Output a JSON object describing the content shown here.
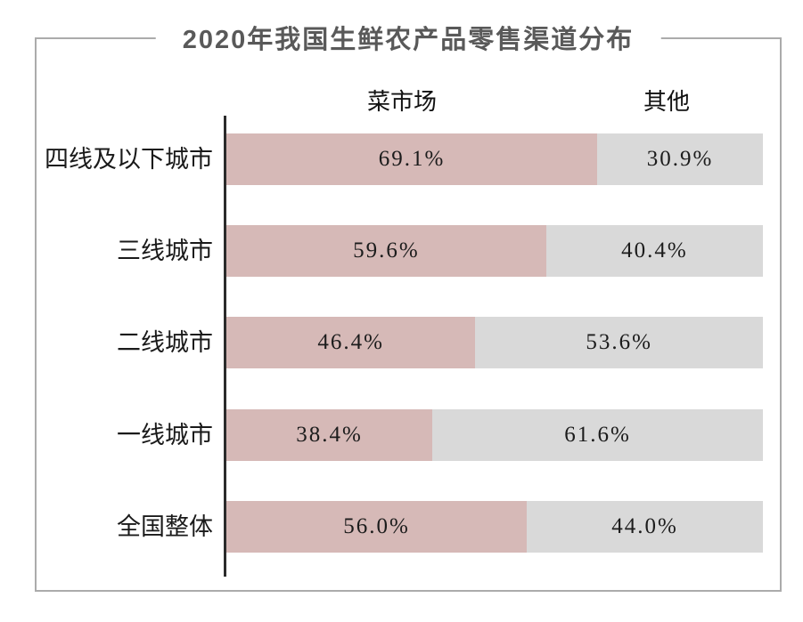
{
  "title": "2020年我国生鲜农产品零售渠道分布",
  "colors": {
    "market": "#d6b9b7",
    "other": "#d9d9d9",
    "frame": "#ababab",
    "axis": "#2b2b2b",
    "title_text": "#595959",
    "label_text": "#1a1a1a",
    "value_text": "#1c1c1c"
  },
  "legend": {
    "market": "菜市场",
    "other": "其他"
  },
  "chart_data": {
    "type": "bar",
    "orientation": "horizontal",
    "stacked": true,
    "unit": "percent",
    "title": "2020年我国生鲜农产品零售渠道分布",
    "legend": [
      "菜市场",
      "其他"
    ],
    "legend_position": "top",
    "grid": false,
    "xlim": [
      0,
      100
    ],
    "categories": [
      "四线及以下城市",
      "三线城市",
      "二线城市",
      "一线城市",
      "全国整体"
    ],
    "series": [
      {
        "name": "菜市场",
        "values": [
          69.1,
          59.6,
          46.4,
          38.4,
          56.0
        ]
      },
      {
        "name": "其他",
        "values": [
          30.9,
          40.4,
          53.6,
          61.6,
          44.0
        ]
      }
    ],
    "rows": [
      {
        "label": "四线及以下城市",
        "market_pct": 69.1,
        "market_label": "69.1%",
        "other_pct": 30.9,
        "other_label": "30.9%"
      },
      {
        "label": "三线城市",
        "market_pct": 59.6,
        "market_label": "59.6%",
        "other_pct": 40.4,
        "other_label": "40.4%"
      },
      {
        "label": "二线城市",
        "market_pct": 46.4,
        "market_label": "46.4%",
        "other_pct": 53.6,
        "other_label": "53.6%"
      },
      {
        "label": "一线城市",
        "market_pct": 38.4,
        "market_label": "38.4%",
        "other_pct": 61.6,
        "other_label": "61.6%"
      },
      {
        "label": "全国整体",
        "market_pct": 56.0,
        "market_label": "56.0%",
        "other_pct": 44.0,
        "other_label": "44.0%"
      }
    ]
  }
}
